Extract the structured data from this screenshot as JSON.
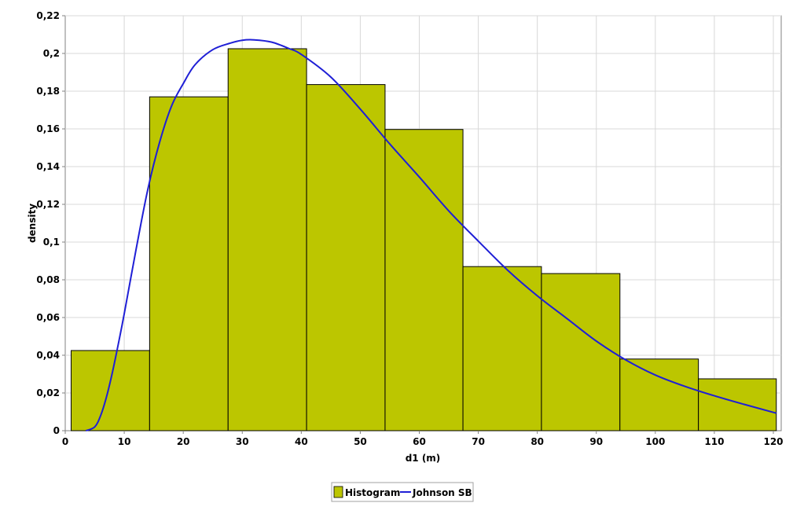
{
  "chart_data": {
    "type": "bar",
    "title": "",
    "xlabel": "d1 (m)",
    "ylabel": "density",
    "xlim": [
      0,
      120
    ],
    "ylim": [
      0,
      0.22
    ],
    "x_ticks": [
      "0",
      "10",
      "20",
      "30",
      "40",
      "50",
      "60",
      "70",
      "80",
      "90",
      "100",
      "110",
      "120"
    ],
    "y_ticks": [
      "0",
      "0,02",
      "0,04",
      "0,06",
      "0,08",
      "0,1",
      "0,12",
      "0,14",
      "0,16",
      "0,18",
      "0,2",
      "0,22"
    ],
    "grid": true,
    "legend_position": "bottom",
    "series": [
      {
        "name": "Histogram",
        "kind": "bar",
        "color": "#bcc600",
        "bins": [
          {
            "x0": 1,
            "x1": 14.3,
            "value": 0.0425
          },
          {
            "x0": 14.3,
            "x1": 27.6,
            "value": 0.177
          },
          {
            "x0": 27.6,
            "x1": 40.9,
            "value": 0.2025
          },
          {
            "x0": 40.9,
            "x1": 54.2,
            "value": 0.1835
          },
          {
            "x0": 54.2,
            "x1": 67.4,
            "value": 0.1597
          },
          {
            "x0": 67.4,
            "x1": 80.7,
            "value": 0.087
          },
          {
            "x0": 80.7,
            "x1": 94.0,
            "value": 0.0833
          },
          {
            "x0": 94.0,
            "x1": 107.3,
            "value": 0.038
          },
          {
            "x0": 107.3,
            "x1": 120.5,
            "value": 0.0275
          }
        ]
      },
      {
        "name": "Johnson SB",
        "kind": "line",
        "color": "#1f1fd6",
        "x": [
          3.5,
          5,
          6,
          7,
          8,
          9,
          10,
          12,
          14,
          16,
          18,
          20,
          22,
          25,
          28,
          30,
          32,
          35,
          38,
          40,
          45,
          50,
          55,
          60,
          65,
          70,
          75,
          80,
          85,
          90,
          95,
          100,
          105,
          110,
          115,
          120.5
        ],
        "y": [
          0.0,
          0.002,
          0.008,
          0.018,
          0.031,
          0.046,
          0.062,
          0.096,
          0.128,
          0.153,
          0.172,
          0.184,
          0.194,
          0.202,
          0.2055,
          0.207,
          0.2072,
          0.206,
          0.2025,
          0.1995,
          0.1875,
          0.1705,
          0.152,
          0.1345,
          0.1165,
          0.1005,
          0.085,
          0.0715,
          0.0595,
          0.0475,
          0.0375,
          0.0295,
          0.0235,
          0.0185,
          0.014,
          0.0093
        ]
      }
    ]
  }
}
